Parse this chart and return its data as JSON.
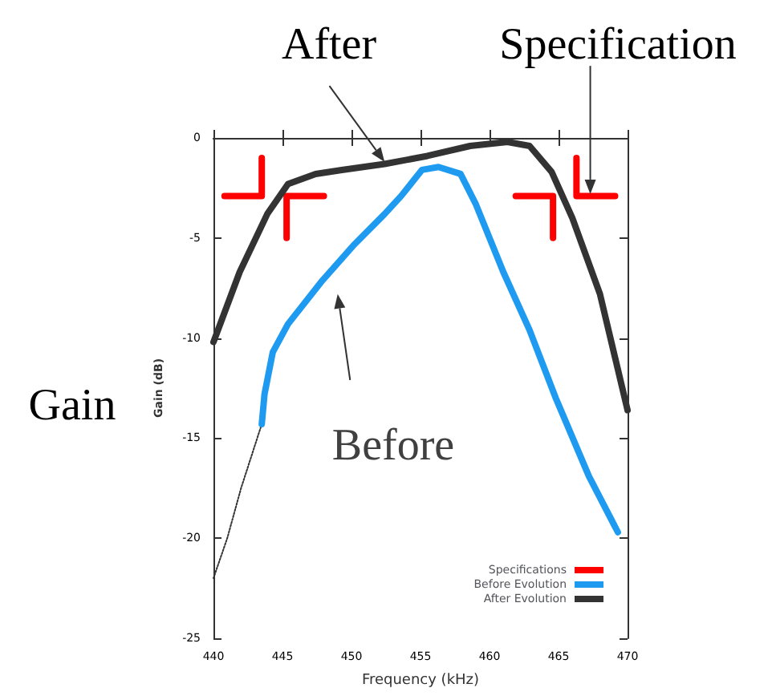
{
  "chart_data": {
    "type": "line",
    "xlabel": "Frequency (kHz)",
    "ylabel": "Gain (dB)",
    "annotations": [
      "After",
      "Specification",
      "Before",
      "Gain"
    ],
    "xlim": [
      440,
      470
    ],
    "xticks": [
      440,
      445,
      450,
      455,
      460,
      465,
      470
    ],
    "ylim": [
      -25,
      0
    ],
    "yticks": [
      -25,
      -20,
      -15,
      -10,
      -5,
      0
    ],
    "grid": false,
    "legend": "bottom right",
    "marker": "none",
    "series": [
      {
        "name": "Specifications",
        "color": "#ff0000",
        "line_style": "solid",
        "x": [
          440.8,
          443.5,
          443.5,
          null,
          445.3,
          445.3,
          448.0,
          null,
          461.9,
          464.6,
          464.6,
          null,
          466.3,
          466.3,
          469.1
        ],
        "values": [
          -2.9,
          -2.9,
          -1.0,
          null,
          -5.0,
          -2.9,
          -2.9,
          null,
          -2.9,
          -2.9,
          -5.0,
          null,
          -1.0,
          -2.9,
          -2.9
        ]
      },
      {
        "color": "#333333",
        "line_style": "dotted",
        "x": [
          440,
          441,
          442,
          443.5
        ],
        "values": [
          -22,
          -20,
          -17.5,
          -14.3
        ]
      },
      {
        "name": "Before Evolution",
        "color": "#1e9bf0",
        "line_style": "solid",
        "x": [
          443.5,
          443.7,
          444.3,
          445.4,
          447.8,
          450.1,
          452.4,
          453.6,
          455.1,
          456.3,
          457.9,
          459.0,
          461.0,
          462.9,
          464.8,
          467.2,
          469.3
        ],
        "values": [
          -14.3,
          -12.8,
          -10.7,
          -9.3,
          -7.2,
          -5.4,
          -3.8,
          -2.9,
          -1.6,
          -1.45,
          -1.8,
          -3.3,
          -6.7,
          -9.6,
          -13.0,
          -16.9,
          -19.7
        ]
      },
      {
        "name": "After Evolution",
        "color": "#333333",
        "line_style": "solid",
        "x": [
          440,
          441.9,
          443.9,
          445.4,
          447.4,
          449.3,
          452.4,
          455.5,
          458.6,
          461.3,
          462.9,
          464.5,
          466.0,
          468.0,
          470
        ],
        "values": [
          -10.2,
          -6.7,
          -3.8,
          -2.3,
          -1.8,
          -1.6,
          -1.3,
          -0.9,
          -0.4,
          -0.2,
          -0.4,
          -1.7,
          -4.0,
          -7.8,
          -13.6
        ]
      }
    ]
  }
}
